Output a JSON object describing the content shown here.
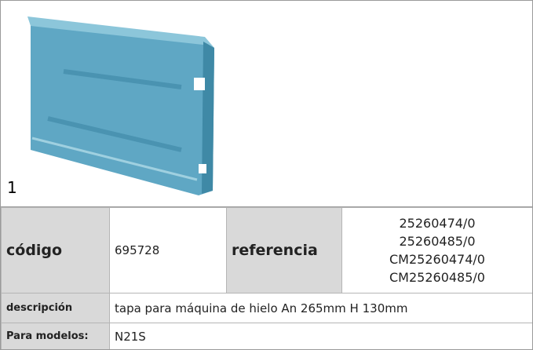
{
  "image": {
    "label": "1"
  },
  "table": {
    "code_label": "código",
    "code": "695728",
    "reference_label": "referencia",
    "references": [
      "25260474/0",
      "25260485/0",
      "CM25260474/0",
      "CM25260485/0"
    ],
    "description_label": "descripción",
    "description": "tapa  para máquina de hielo An 265mm H 130mm",
    "models_label": "Para modelos:",
    "models": "N21S"
  }
}
